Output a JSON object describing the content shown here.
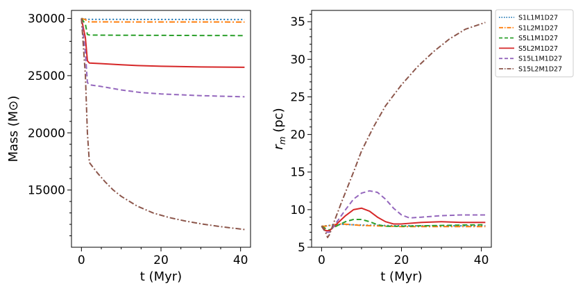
{
  "chart_data": [
    {
      "type": "line",
      "xlabel": "t (Myr)",
      "ylabel": "Mass (M⊙)",
      "xlim": [
        -2.5,
        42.5
      ],
      "ylim": [
        10000,
        30700
      ],
      "xticks": [
        0,
        20,
        40
      ],
      "yticks": [
        15000,
        20000,
        25000,
        30000
      ],
      "x_minor_ticks": [
        5,
        10,
        15,
        25,
        30,
        35
      ],
      "y_minor_ticks": [
        11000,
        12000,
        13000,
        14000,
        16000,
        17000,
        18000,
        19000,
        21000,
        22000,
        23000,
        24000,
        26000,
        27000,
        28000,
        29000
      ],
      "series": [
        {
          "name": "S1L1M1D27",
          "color": "#1f77b4",
          "dash": "dotted",
          "x": [
            0,
            1,
            2,
            5,
            10,
            20,
            30,
            41
          ],
          "y": [
            30000,
            29950,
            29920,
            29920,
            29915,
            29910,
            29910,
            29905
          ]
        },
        {
          "name": "S1L2M1D27",
          "color": "#ff7f0e",
          "dash": "dashdot",
          "x": [
            0,
            1,
            1.6,
            2,
            5,
            10,
            20,
            30,
            41
          ],
          "y": [
            30000,
            29900,
            29720,
            29700,
            29700,
            29690,
            29690,
            29690,
            29685
          ]
        },
        {
          "name": "S5L1M1D27",
          "color": "#2ca02c",
          "dash": "dashed",
          "x": [
            0,
            1,
            1.5,
            2,
            5,
            10,
            20,
            30,
            41
          ],
          "y": [
            30000,
            29500,
            28600,
            28550,
            28540,
            28530,
            28520,
            28510,
            28500
          ]
        },
        {
          "name": "S5L2M1D27",
          "color": "#d62728",
          "dash": "solid",
          "x": [
            0,
            1,
            1.5,
            2,
            5,
            10,
            14,
            20,
            30,
            41
          ],
          "y": [
            30000,
            28300,
            26300,
            26100,
            26050,
            25950,
            25880,
            25820,
            25760,
            25730
          ]
        },
        {
          "name": "S15L1M1D27",
          "color": "#9467bd",
          "dash": "dashed",
          "x": [
            0,
            1,
            1.5,
            2,
            5,
            10,
            15,
            20,
            30,
            41
          ],
          "y": [
            30000,
            27000,
            24400,
            24200,
            24050,
            23750,
            23520,
            23400,
            23250,
            23150
          ]
        },
        {
          "name": "S15L2M1D27",
          "color": "#8c564b",
          "dash": "dashdot",
          "x": [
            0,
            1,
            1.5,
            2,
            4,
            6,
            8,
            10,
            14,
            18,
            22,
            26,
            30,
            35,
            41
          ],
          "y": [
            30000,
            25000,
            20000,
            17400,
            16500,
            15700,
            15000,
            14450,
            13600,
            13000,
            12600,
            12300,
            12050,
            11800,
            11550
          ]
        }
      ]
    },
    {
      "type": "line",
      "xlabel": "t (Myr)",
      "ylabel_base": "r",
      "ylabel_sub": "m",
      "ylabel_unit": " (pc)",
      "xlim": [
        -2.5,
        42.5
      ],
      "ylim": [
        5,
        36.5
      ],
      "xticks": [
        0,
        20,
        40
      ],
      "yticks": [
        5,
        10,
        15,
        20,
        25,
        30,
        35
      ],
      "x_minor_ticks": [
        5,
        10,
        15,
        25,
        30,
        35
      ],
      "y_minor_ticks": [
        6,
        7,
        8,
        9,
        11,
        12,
        13,
        14,
        16,
        17,
        18,
        19,
        21,
        22,
        23,
        24,
        26,
        27,
        28,
        29,
        31,
        32,
        33,
        34,
        36
      ],
      "legend_position": "outside-top-right",
      "series": [
        {
          "name": "S1L1M1D27",
          "color": "#1f77b4",
          "dash": "dotted",
          "x": [
            0,
            1,
            2,
            3,
            5,
            10,
            20,
            30,
            41
          ],
          "y": [
            7.8,
            7.85,
            7.9,
            8.0,
            8.05,
            7.95,
            7.85,
            7.85,
            7.85
          ]
        },
        {
          "name": "S1L2M1D27",
          "color": "#ff7f0e",
          "dash": "dashdot",
          "x": [
            0,
            1,
            2,
            3,
            5,
            10,
            20,
            30,
            41
          ],
          "y": [
            7.8,
            7.8,
            7.9,
            8.0,
            8.1,
            7.9,
            7.75,
            7.75,
            7.75
          ]
        },
        {
          "name": "S5L1M1D27",
          "color": "#2ca02c",
          "dash": "dashed",
          "x": [
            0,
            1,
            2,
            4,
            6,
            8,
            10,
            12,
            14,
            16,
            20,
            25,
            30,
            35,
            41
          ],
          "y": [
            7.8,
            7.5,
            7.3,
            7.9,
            8.4,
            8.7,
            8.7,
            8.4,
            8.0,
            7.8,
            7.8,
            7.85,
            7.9,
            7.95,
            8.0
          ]
        },
        {
          "name": "S5L2M1D27",
          "color": "#d62728",
          "dash": "solid",
          "x": [
            0,
            1,
            2,
            4,
            6,
            8,
            10,
            12,
            14,
            16,
            18,
            20,
            25,
            30,
            35,
            41
          ],
          "y": [
            7.8,
            7.2,
            7.2,
            8.2,
            9.2,
            10.0,
            10.2,
            9.8,
            9.0,
            8.4,
            8.1,
            8.1,
            8.3,
            8.4,
            8.3,
            8.3
          ]
        },
        {
          "name": "S15L1M1D27",
          "color": "#9467bd",
          "dash": "dashed",
          "x": [
            0,
            1,
            2,
            4,
            6,
            8,
            10,
            12,
            14,
            16,
            18,
            20,
            22,
            25,
            30,
            35,
            41
          ],
          "y": [
            7.8,
            7.0,
            7.0,
            8.5,
            10.0,
            11.4,
            12.2,
            12.5,
            12.3,
            11.4,
            10.2,
            9.3,
            8.9,
            9.0,
            9.2,
            9.3,
            9.3
          ]
        },
        {
          "name": "S15L2M1D27",
          "color": "#8c564b",
          "dash": "dashdot",
          "x": [
            0,
            1,
            1.5,
            2,
            3,
            5,
            8,
            10,
            13,
            16,
            20,
            24,
            28,
            32,
            36,
            41
          ],
          "y": [
            7.8,
            7.0,
            6.3,
            6.7,
            8.2,
            11.0,
            15.0,
            17.8,
            21.0,
            23.8,
            26.6,
            29.0,
            31.0,
            32.7,
            34.0,
            34.9
          ]
        }
      ]
    }
  ]
}
